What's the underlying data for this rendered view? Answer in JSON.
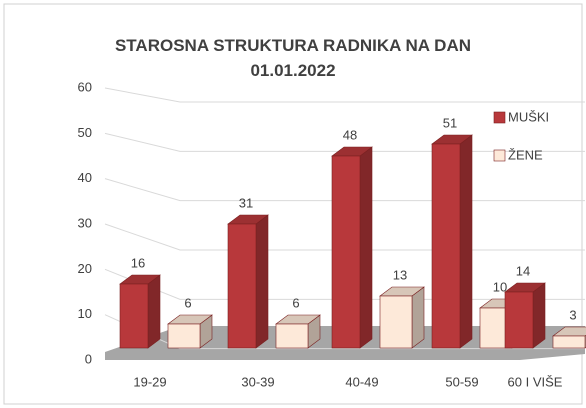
{
  "chart_data": {
    "type": "bar3d",
    "title": "STAROSNA STRUKTURA RADNIKA NA DAN 01.01.2022",
    "categories": [
      "19-29",
      "30-39",
      "40-49",
      "50-59",
      "60 I VIŠE"
    ],
    "series": [
      {
        "name": "MUŠKI",
        "color": "#b8383b",
        "values": [
          16,
          31,
          48,
          51,
          14
        ]
      },
      {
        "name": "ŽENE",
        "color": "#fde9d9",
        "values": [
          6,
          6,
          13,
          10,
          3
        ]
      }
    ],
    "ylim": [
      0,
      60
    ],
    "yticks": [
      0,
      10,
      20,
      30,
      40,
      50,
      60
    ],
    "grid": true,
    "legend": "right"
  }
}
